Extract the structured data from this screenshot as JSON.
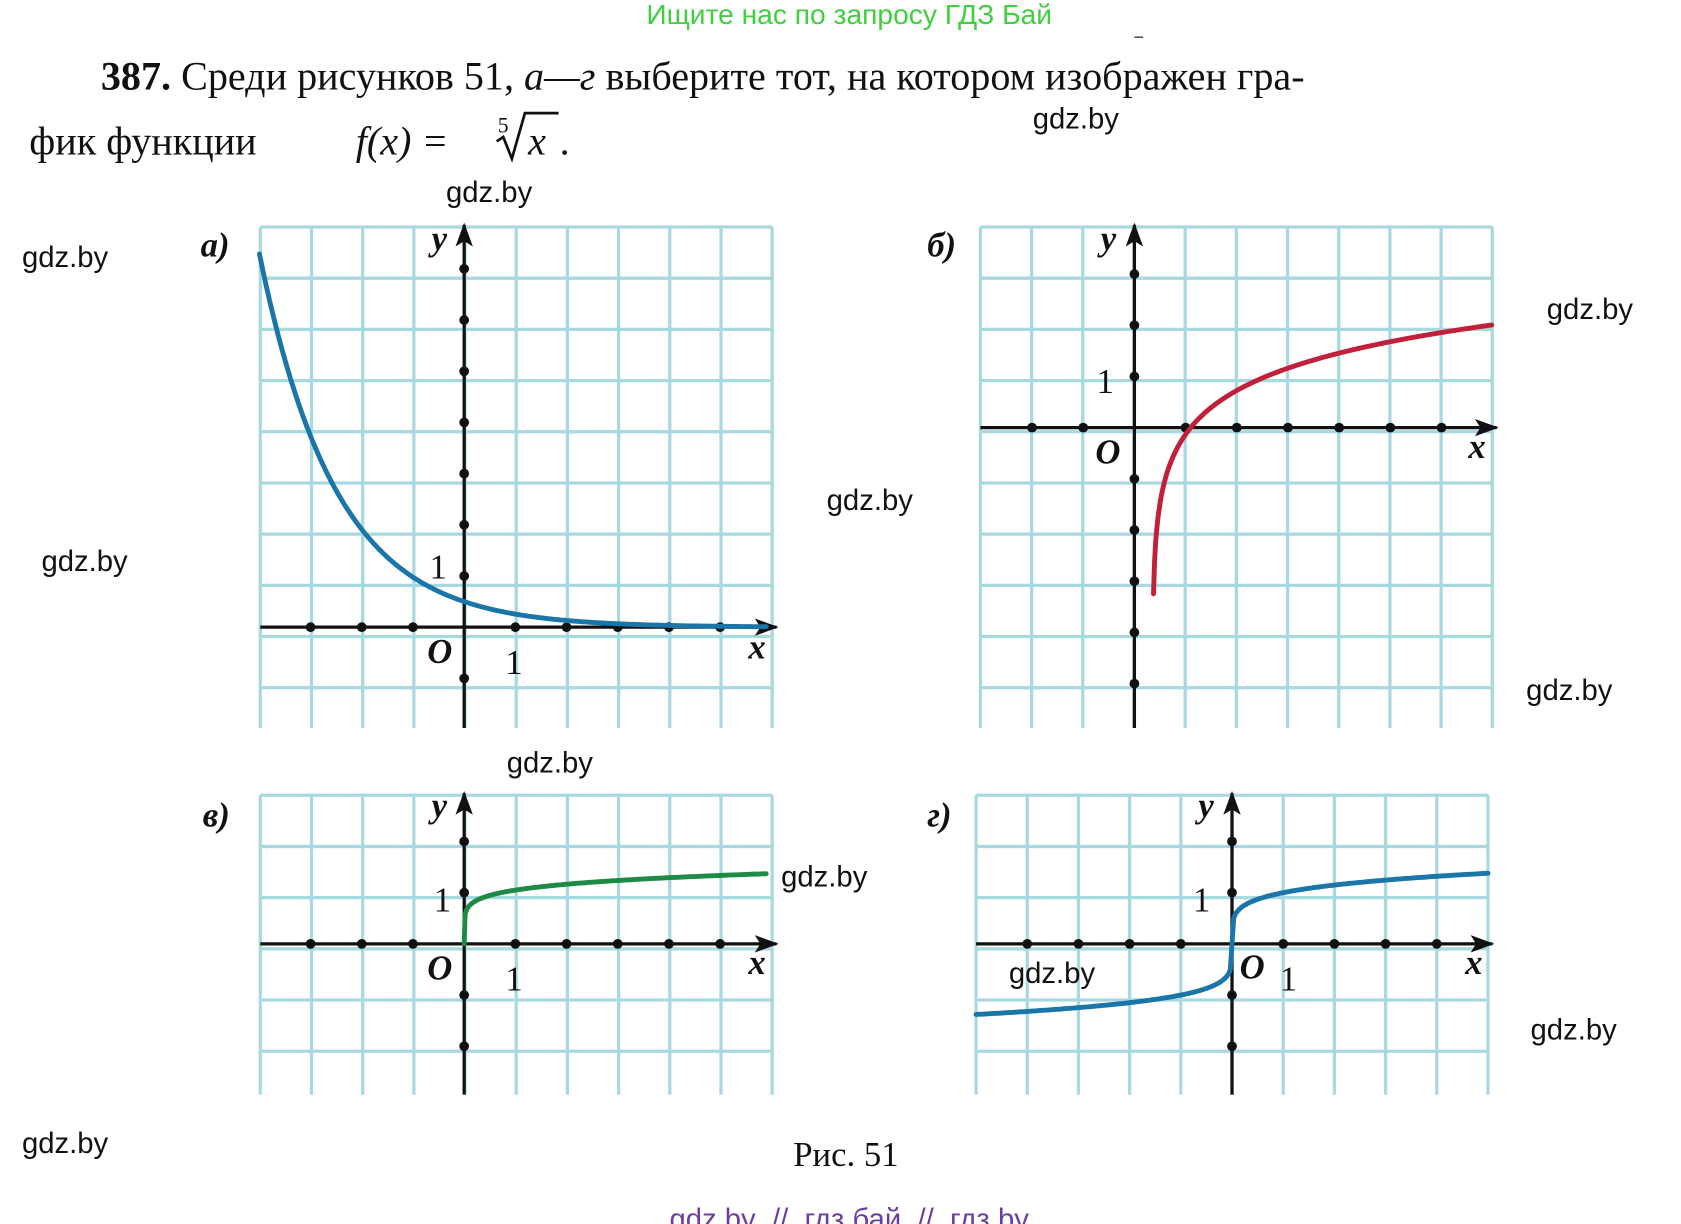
{
  "header": "Ищите нас по запросу ГДЗ Бай",
  "problem": {
    "number": "387.",
    "text_a": "Среди рисунков 51,",
    "text_italic": "а—г",
    "text_b": "выберите тот, на котором изображен гра-",
    "text_line2": "фик функции",
    "formula_lhs": "f(x) =",
    "root_index": "5",
    "radicand": "x",
    "formula_end": "."
  },
  "figures": [
    {
      "label": "а)",
      "y_label": "y",
      "x_label": "x",
      "origin": "O",
      "y_unit": "1",
      "x_unit": "1"
    },
    {
      "label": "б)",
      "y_label": "y",
      "x_label": "x",
      "origin": "O",
      "y_unit": "1"
    },
    {
      "label": "в)",
      "y_label": "y",
      "x_label": "x",
      "origin": "O",
      "y_unit": "1",
      "x_unit": "1"
    },
    {
      "label": "г)",
      "y_label": "y",
      "x_label": "x",
      "origin": "O",
      "y_unit": "1",
      "x_unit": "1"
    }
  ],
  "caption": "Рис. 51",
  "watermarks": [
    "gdz.by",
    "gdz.by",
    "gdz.by",
    "gdz.by",
    "gdz.by",
    "gdz.by",
    "gdz.by",
    "gdz.by",
    "gdz.by",
    "gdz.by",
    "gdz.by",
    "gdz.by"
  ],
  "footer": "gdz by  //  гдз бай  //  гдз by"
}
